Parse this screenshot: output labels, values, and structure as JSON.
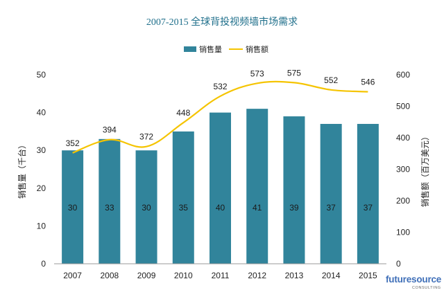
{
  "chart_data": {
    "type": "bar+line",
    "title": "2007-2015 全球背投视频墙市场需求",
    "categories": [
      "2007",
      "2008",
      "2009",
      "2010",
      "2011",
      "2012",
      "2013",
      "2014",
      "2015"
    ],
    "series": [
      {
        "name": "销售量",
        "type": "bar",
        "axis": "left",
        "color": "#31849b",
        "values": [
          30,
          33,
          30,
          35,
          40,
          41,
          39,
          37,
          37
        ]
      },
      {
        "name": "销售额",
        "type": "line",
        "axis": "right",
        "color": "#f5c400",
        "values": [
          352,
          394,
          372,
          448,
          532,
          573,
          575,
          552,
          546
        ]
      }
    ],
    "ylabel_left": "销售量（千台）",
    "ylabel_right": "销售额（百万美元）",
    "ylim_left": [
      0,
      50
    ],
    "ylim_right": [
      0,
      600
    ],
    "yticks_left": [
      "0",
      "10",
      "20",
      "30",
      "40",
      "50"
    ],
    "yticks_right": [
      "0",
      "100",
      "200",
      "300",
      "400",
      "500",
      "600"
    ],
    "legend_position": "top-center",
    "grid": false
  },
  "branding": {
    "logo_text": "futuresource",
    "logo_sub": "CONSULTING"
  }
}
